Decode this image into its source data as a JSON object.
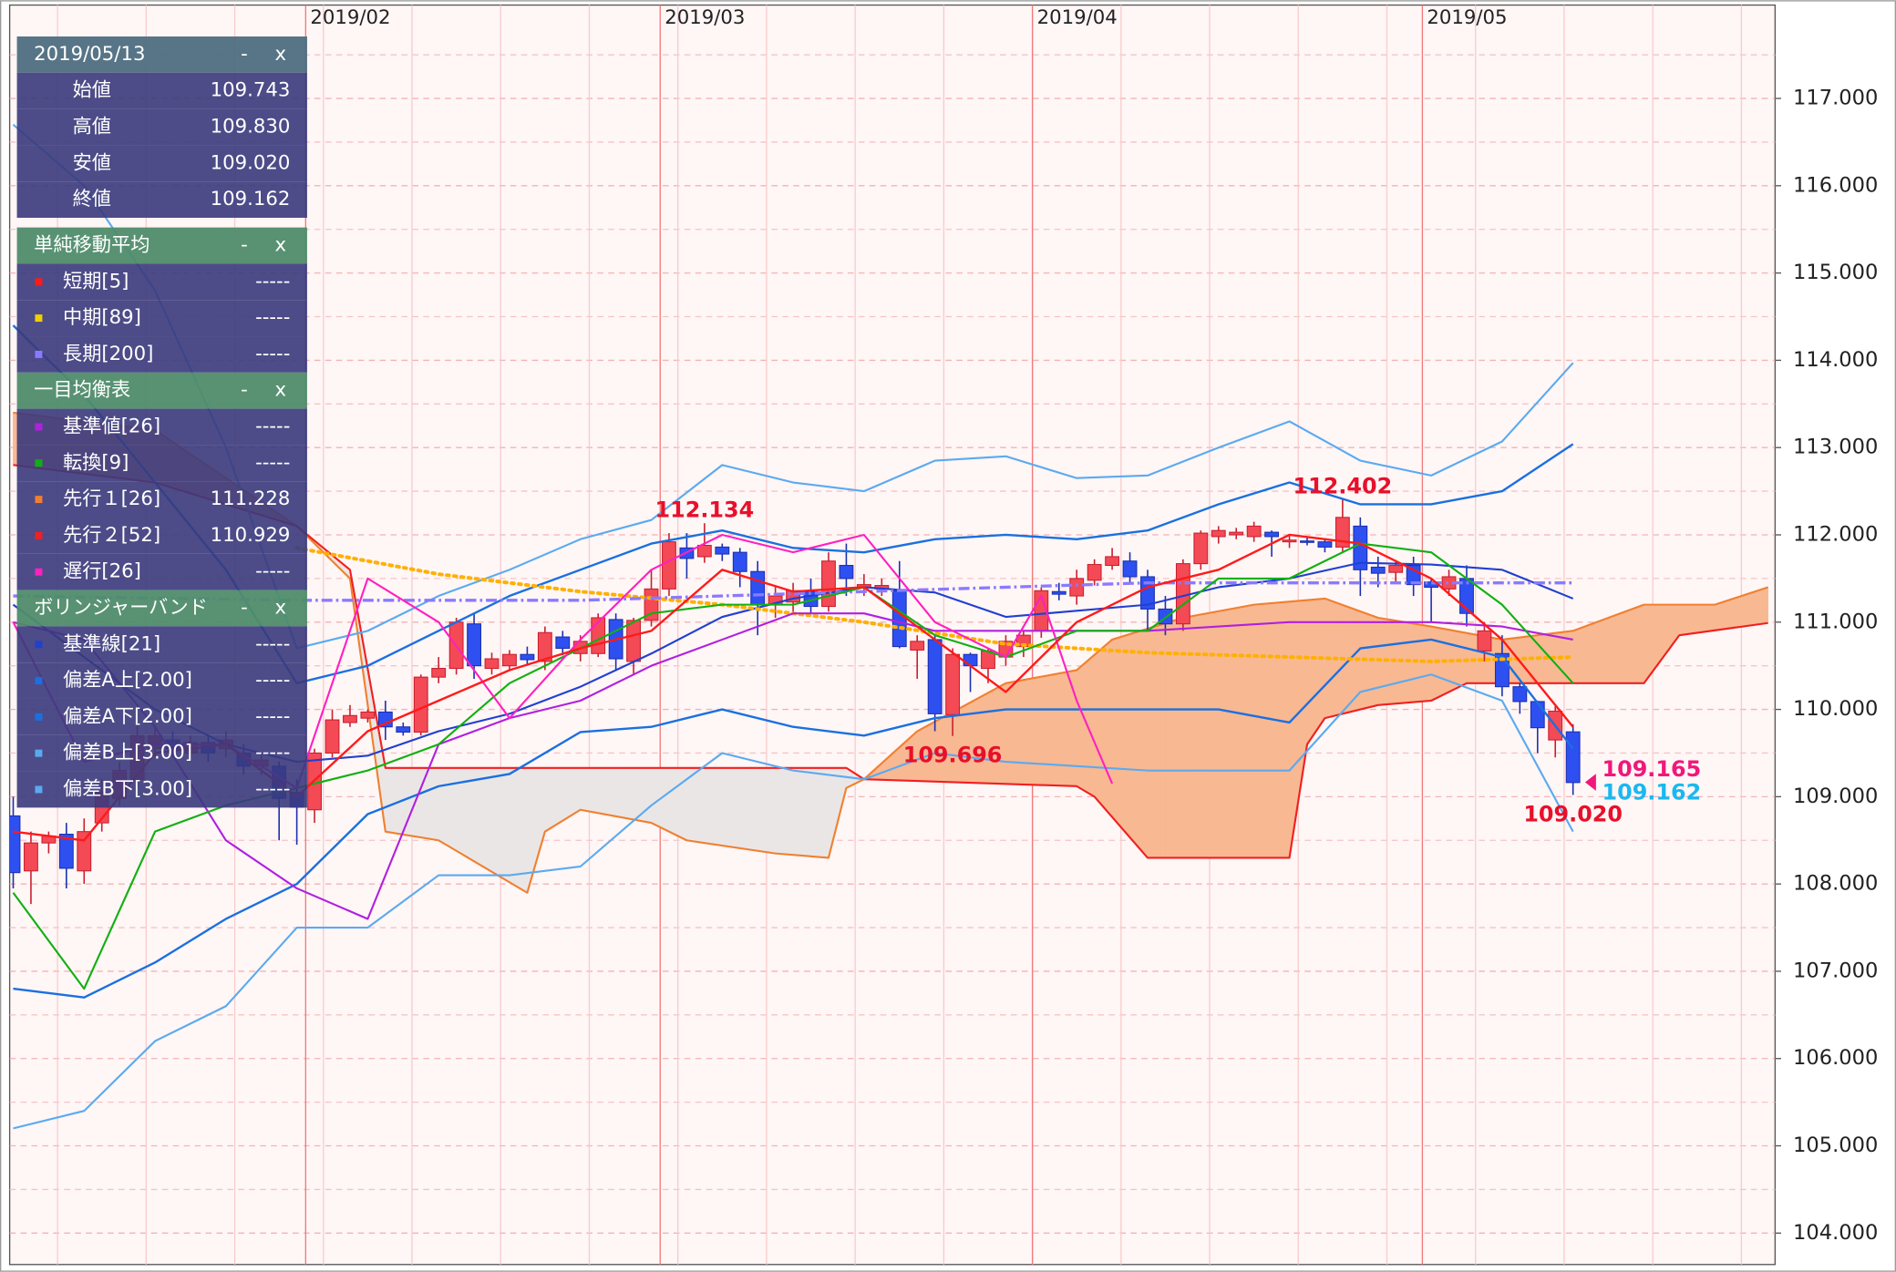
{
  "chart_data": {
    "type": "candlestick",
    "ylim": [
      103.64,
      118.07
    ],
    "yticks": [
      {
        "value": 104,
        "label": "104.000"
      },
      {
        "value": 105,
        "label": "105.000"
      },
      {
        "value": 106,
        "label": "106.000"
      },
      {
        "value": 107,
        "label": "107.000"
      },
      {
        "value": 108,
        "label": "108.000"
      },
      {
        "value": 109,
        "label": "109.000"
      },
      {
        "value": 110,
        "label": "110.000"
      },
      {
        "value": 111,
        "label": "111.000"
      },
      {
        "value": 112,
        "label": "112.000"
      },
      {
        "value": 113,
        "label": "113.000"
      },
      {
        "value": 114,
        "label": "114.000"
      },
      {
        "value": 115,
        "label": "115.000"
      },
      {
        "value": 116,
        "label": "116.000"
      },
      {
        "value": 117,
        "label": "117.000"
      }
    ],
    "minor_yticks": [
      104.5,
      105.5,
      106.5,
      107.5,
      108.5,
      109.5,
      110.5,
      111.5,
      112.5,
      113.5,
      114.5,
      115.5,
      116.5,
      117.5
    ],
    "xlim": [
      -0.2,
      99.4
    ],
    "xticks": [
      {
        "value": 17,
        "label": "2019/02"
      },
      {
        "value": 37,
        "label": "2019/03"
      },
      {
        "value": 58,
        "label": "2019/04"
      },
      {
        "value": 80,
        "label": "2019/05"
      }
    ],
    "grid": true,
    "up_color": "#f34a56",
    "down_color": "#2e50f0",
    "open": [
      108.78,
      108.15,
      108.47,
      108.57,
      108.15,
      108.7,
      108.98,
      109.2,
      109.55,
      109.65,
      109.5,
      109.62,
      109.55,
      109.5,
      109.35,
      109.35,
      109.05,
      108.85,
      109.5,
      109.85,
      109.9,
      109.97,
      109.8,
      109.74,
      110.37,
      110.47,
      110.98,
      110.47,
      110.5,
      110.63,
      110.55,
      110.83,
      110.64,
      110.64,
      111.03,
      110.55,
      111.02,
      111.38,
      111.85,
      111.75,
      111.86,
      111.8,
      111.58,
      111.2,
      111.23,
      111.35,
      111.18,
      111.65,
      111.4,
      111.38,
      111.36,
      110.68,
      110.8,
      109.94,
      110.63,
      110.47,
      110.6,
      110.72,
      110.9,
      111.35,
      111.3,
      111.48,
      111.65,
      111.7,
      111.52,
      111.15,
      110.98,
      111.67,
      111.98,
      112.0,
      111.98,
      112.03,
      111.92,
      111.93,
      111.92,
      111.86,
      112.1,
      111.63,
      111.57,
      111.65,
      111.46,
      111.38,
      111.5,
      110.67,
      110.64,
      110.26,
      110.09,
      109.65,
      109.743
    ],
    "high": [
      109.0,
      108.6,
      108.6,
      108.7,
      108.75,
      109.2,
      109.4,
      109.85,
      109.8,
      109.75,
      109.7,
      109.7,
      109.75,
      109.6,
      109.5,
      109.4,
      109.2,
      109.55,
      110.0,
      110.05,
      110.0,
      110.1,
      109.85,
      110.4,
      110.6,
      111.05,
      111.1,
      110.65,
      110.68,
      110.72,
      110.95,
      110.9,
      110.85,
      111.1,
      111.1,
      111.05,
      111.6,
      112.02,
      112.02,
      112.134,
      111.9,
      111.85,
      111.7,
      111.4,
      111.45,
      111.5,
      111.8,
      111.9,
      111.55,
      111.5,
      111.7,
      110.85,
      110.85,
      110.7,
      110.65,
      110.7,
      110.85,
      110.9,
      111.4,
      111.45,
      111.6,
      111.72,
      111.85,
      111.8,
      111.6,
      111.3,
      111.72,
      112.05,
      112.1,
      112.08,
      112.15,
      112.05,
      112.0,
      111.98,
      111.95,
      112.402,
      112.2,
      111.75,
      111.7,
      111.75,
      111.5,
      111.6,
      111.65,
      111.0,
      110.85,
      110.3,
      110.1,
      110.05,
      109.83
    ],
    "low": [
      107.95,
      107.77,
      108.35,
      107.95,
      108.0,
      108.6,
      108.9,
      109.1,
      109.45,
      109.45,
      109.4,
      109.4,
      109.45,
      109.25,
      109.25,
      108.5,
      108.45,
      108.7,
      109.45,
      109.8,
      109.85,
      109.65,
      109.7,
      109.7,
      110.3,
      110.4,
      110.35,
      110.4,
      110.45,
      110.5,
      110.45,
      110.62,
      110.55,
      110.6,
      110.45,
      110.4,
      110.95,
      111.3,
      111.5,
      111.68,
      111.7,
      111.4,
      110.85,
      111.05,
      111.1,
      111.1,
      111.12,
      111.3,
      111.3,
      111.3,
      110.7,
      110.35,
      109.75,
      109.696,
      110.2,
      110.3,
      110.5,
      110.6,
      110.82,
      111.25,
      111.2,
      111.42,
      111.6,
      111.45,
      110.9,
      110.85,
      110.9,
      111.6,
      111.9,
      111.95,
      111.92,
      111.75,
      111.85,
      111.88,
      111.8,
      111.8,
      111.3,
      111.4,
      111.45,
      111.3,
      111.0,
      111.3,
      110.95,
      110.55,
      110.15,
      109.95,
      109.5,
      109.45,
      109.02
    ],
    "close": [
      108.13,
      108.47,
      108.55,
      108.18,
      108.6,
      109.05,
      109.3,
      109.7,
      109.7,
      109.55,
      109.62,
      109.5,
      109.65,
      109.35,
      109.42,
      108.98,
      108.88,
      109.5,
      109.88,
      109.93,
      109.97,
      109.8,
      109.74,
      110.37,
      110.47,
      111.0,
      110.5,
      110.58,
      110.63,
      110.57,
      110.88,
      110.7,
      110.78,
      111.05,
      110.58,
      111.02,
      111.38,
      111.92,
      111.73,
      111.88,
      111.78,
      111.58,
      111.2,
      111.3,
      111.36,
      111.18,
      111.7,
      111.5,
      111.43,
      111.42,
      110.72,
      110.78,
      109.95,
      110.63,
      110.5,
      110.67,
      110.78,
      110.85,
      111.36,
      111.32,
      111.5,
      111.66,
      111.75,
      111.52,
      111.15,
      110.98,
      111.67,
      112.02,
      112.05,
      112.03,
      112.1,
      111.98,
      111.94,
      111.92,
      111.86,
      112.2,
      111.6,
      111.56,
      111.65,
      111.43,
      111.4,
      111.52,
      111.1,
      110.9,
      110.26,
      110.09,
      109.79,
      109.98,
      109.162
    ],
    "series": [
      {
        "color": "#5aaaf0",
        "width": 1.6,
        "x": [
          0,
          4,
          8,
          12,
          16,
          20,
          24,
          28,
          32,
          36,
          40,
          44,
          48,
          52,
          56,
          60,
          64,
          68,
          72,
          76,
          80,
          84,
          88
        ],
        "values": [
          116.7,
          116.0,
          114.8,
          113.0,
          110.7,
          110.9,
          111.3,
          111.6,
          111.95,
          112.17,
          112.8,
          112.6,
          112.5,
          112.85,
          112.9,
          112.65,
          112.68,
          113.0,
          113.3,
          112.85,
          112.68,
          113.07,
          113.97
        ]
      },
      {
        "color": "#1a70e0",
        "width": 1.8,
        "x": [
          0,
          4,
          8,
          12,
          16,
          20,
          24,
          28,
          32,
          36,
          40,
          44,
          48,
          52,
          56,
          60,
          64,
          68,
          72,
          76,
          80,
          84,
          88
        ],
        "values": [
          114.4,
          113.6,
          112.6,
          111.6,
          110.3,
          110.5,
          110.9,
          111.3,
          111.6,
          111.9,
          112.05,
          111.85,
          111.8,
          111.95,
          112.0,
          111.95,
          112.05,
          112.35,
          112.6,
          112.35,
          112.35,
          112.5,
          113.04
        ]
      },
      {
        "color": "#2040d0",
        "width": 1.6,
        "x": [
          0,
          4,
          8,
          12,
          16,
          20,
          24,
          28,
          32,
          36,
          40,
          44,
          48,
          52,
          56,
          60,
          64,
          68,
          72,
          76,
          80,
          84,
          88
        ],
        "values": [
          111.2,
          110.6,
          110.0,
          109.6,
          109.4,
          109.47,
          109.75,
          109.95,
          110.26,
          110.64,
          111.06,
          111.27,
          111.4,
          111.34,
          111.06,
          111.13,
          111.2,
          111.4,
          111.5,
          111.68,
          111.66,
          111.6,
          111.27
        ]
      },
      {
        "color": "#1a70e0",
        "width": 1.8,
        "x": [
          0,
          4,
          8,
          12,
          16,
          20,
          24,
          28,
          32,
          36,
          40,
          44,
          48,
          52,
          56,
          60,
          64,
          68,
          72,
          76,
          80,
          84,
          88
        ],
        "values": [
          106.8,
          106.7,
          107.1,
          107.6,
          108.0,
          108.8,
          109.12,
          109.26,
          109.74,
          109.8,
          110.0,
          109.8,
          109.7,
          109.9,
          110.0,
          110.0,
          110.0,
          110.0,
          109.85,
          110.7,
          110.8,
          110.6,
          109.55
        ]
      },
      {
        "color": "#5aaaf0",
        "width": 1.6,
        "x": [
          0,
          4,
          8,
          12,
          16,
          20,
          24,
          28,
          32,
          36,
          40,
          44,
          48,
          52,
          56,
          60,
          64,
          68,
          72,
          76,
          80,
          84,
          88
        ],
        "values": [
          105.2,
          105.4,
          106.2,
          106.6,
          107.5,
          107.5,
          108.1,
          108.1,
          108.2,
          108.9,
          109.5,
          109.3,
          109.2,
          109.5,
          109.4,
          109.35,
          109.3,
          109.3,
          109.3,
          110.2,
          110.4,
          110.1,
          108.6
        ]
      },
      {
        "color": "#ffb000",
        "width": 3,
        "dash": "dotted",
        "x": [
          16,
          24,
          32,
          40,
          48,
          56,
          64,
          72,
          80,
          88
        ],
        "values": [
          111.85,
          111.55,
          111.35,
          111.2,
          111.0,
          110.75,
          110.65,
          110.6,
          110.55,
          110.6
        ]
      },
      {
        "color": "#8a7aff",
        "width": 2.5,
        "dash": "dashdot",
        "x": [
          0,
          16,
          32,
          48,
          64,
          80,
          88
        ],
        "values": [
          111.3,
          111.25,
          111.25,
          111.35,
          111.45,
          111.45,
          111.45
        ]
      },
      {
        "color": "#b020e0",
        "width": 1.6,
        "x": [
          0,
          4,
          8,
          12,
          16,
          20,
          24,
          28,
          32,
          36,
          40,
          44,
          48,
          52,
          56,
          60,
          64,
          68,
          72,
          76,
          80,
          84,
          88
        ],
        "values": [
          111.0,
          110.8,
          109.8,
          108.5,
          107.95,
          107.6,
          109.6,
          109.9,
          110.1,
          110.5,
          110.8,
          111.1,
          111.1,
          110.9,
          110.9,
          110.9,
          110.9,
          110.95,
          111.0,
          111.0,
          111.0,
          110.95,
          110.8
        ]
      },
      {
        "color": "#10b010",
        "width": 1.6,
        "x": [
          0,
          4,
          8,
          12,
          16,
          20,
          24,
          28,
          32,
          36,
          40,
          44,
          48,
          52,
          56,
          60,
          64,
          68,
          72,
          76,
          80,
          84,
          88
        ],
        "values": [
          107.9,
          106.8,
          108.6,
          108.9,
          109.1,
          109.3,
          109.6,
          110.3,
          110.7,
          111.1,
          111.2,
          111.2,
          111.4,
          110.85,
          110.6,
          110.9,
          110.9,
          111.5,
          111.5,
          111.9,
          111.8,
          111.2,
          110.3
        ]
      },
      {
        "color": "#ff20c0",
        "width": 1.6,
        "x": [
          0,
          4,
          8,
          12,
          16,
          20,
          24,
          28,
          32,
          36,
          40,
          44,
          48,
          52,
          56,
          58,
          60,
          62
        ],
        "values": [
          111.0,
          109.4,
          109.6,
          109.6,
          109.1,
          111.5,
          111.0,
          109.9,
          110.8,
          111.6,
          112.0,
          111.8,
          112.0,
          111.0,
          110.6,
          111.3,
          110.1,
          109.15
        ]
      },
      {
        "color": "#ff1a1a",
        "width": 1.8,
        "x": [
          0,
          4,
          8,
          12,
          16,
          20,
          24,
          28,
          32,
          36,
          40,
          44,
          48,
          52,
          56,
          60,
          64,
          68,
          72,
          76,
          80,
          84,
          88
        ],
        "values": [
          108.6,
          108.5,
          109.5,
          109.6,
          109.0,
          109.75,
          110.1,
          110.45,
          110.7,
          110.9,
          111.6,
          111.35,
          111.4,
          110.8,
          110.2,
          111.0,
          111.4,
          111.6,
          112.0,
          111.9,
          111.5,
          110.8,
          109.8
        ]
      }
    ],
    "cloud": {
      "up_color": "#f8b892",
      "down_color": "#ebe6e6",
      "span1": {
        "color": "#f08030",
        "x": [
          0,
          8,
          16,
          19,
          21,
          24,
          29,
          30,
          32,
          36,
          38,
          43,
          46,
          47,
          48,
          51,
          56,
          60,
          62,
          66,
          70,
          74,
          77,
          80,
          84,
          88,
          92,
          96,
          99
        ],
        "values": [
          113.4,
          113.2,
          112.1,
          111.5,
          108.6,
          108.5,
          107.9,
          108.6,
          108.85,
          108.7,
          108.5,
          108.35,
          108.3,
          109.1,
          109.2,
          109.75,
          110.3,
          110.45,
          110.8,
          111.05,
          111.2,
          111.27,
          111.05,
          110.95,
          110.8,
          110.9,
          111.2,
          111.2,
          111.4
        ]
      },
      "span2": {
        "color": "#f02020",
        "x": [
          0,
          8,
          16,
          19,
          21,
          47,
          48,
          60,
          61,
          64,
          72,
          73,
          74,
          77,
          80,
          82,
          84,
          88,
          92,
          94,
          99
        ],
        "values": [
          112.8,
          112.6,
          112.1,
          111.6,
          109.33,
          109.33,
          109.2,
          109.12,
          109.0,
          108.3,
          108.3,
          109.6,
          109.9,
          110.05,
          110.1,
          110.3,
          110.3,
          110.3,
          110.3,
          110.85,
          110.99
        ]
      }
    },
    "annotations": [
      {
        "label": "112.134",
        "x": 39,
        "value": 112.134,
        "color": "#e8102a",
        "position": "above"
      },
      {
        "label": "112.402",
        "x": 75,
        "value": 112.402,
        "color": "#e8102a",
        "position": "above"
      },
      {
        "label": "109.696",
        "x": 53,
        "value": 109.696,
        "color": "#e8102a",
        "position": "below"
      },
      {
        "label": "109.020",
        "x": 88,
        "value": 109.02,
        "color": "#e8102a",
        "position": "below"
      },
      {
        "label": "109.165",
        "x": 88,
        "value": 109.165,
        "color": "#f0187a",
        "position": "right"
      },
      {
        "label": "109.162",
        "x": 88,
        "value": 109.162,
        "color": "#1ab8f0",
        "position": "right"
      }
    ]
  },
  "panel": {
    "buttons": [
      "-",
      "x"
    ],
    "sections": [
      {
        "title": "2019/05/13",
        "rows": [
          {
            "label": "始値",
            "value": "109.743"
          },
          {
            "label": "高値",
            "value": "109.830"
          },
          {
            "label": "安値",
            "value": "109.020"
          },
          {
            "label": "終値",
            "value": "109.162"
          }
        ]
      },
      {
        "title": "単純移動平均",
        "rows": [
          {
            "label": "短期[5]",
            "value": "-----",
            "color": "#ff1a1a"
          },
          {
            "label": "中期[89]",
            "value": "-----",
            "color": "#f0d000"
          },
          {
            "label": "長期[200]",
            "value": "-----",
            "color": "#8a7aff"
          }
        ]
      },
      {
        "title": "一目均衡表",
        "rows": [
          {
            "label": "基準値[26]",
            "value": "-----",
            "color": "#b020e0"
          },
          {
            "label": "転換[9]",
            "value": "-----",
            "color": "#10b010"
          },
          {
            "label": "先行１[26]",
            "value": "111.228",
            "color": "#f08030"
          },
          {
            "label": "先行２[52]",
            "value": "110.929",
            "color": "#f02020"
          },
          {
            "label": "遅行[26]",
            "value": "-----",
            "color": "#ff20c0"
          }
        ]
      },
      {
        "title": "ボリンジャーバンド",
        "rows": [
          {
            "label": "基準線[21]",
            "value": "-----",
            "color": "#2040d0"
          },
          {
            "label": "偏差A上[2.00]",
            "value": "-----",
            "color": "#1a70e0"
          },
          {
            "label": "偏差A下[2.00]",
            "value": "-----",
            "color": "#1a70e0"
          },
          {
            "label": "偏差B上[3.00]",
            "value": "-----",
            "color": "#5aaaf0"
          },
          {
            "label": "偏差B下[3.00]",
            "value": "-----",
            "color": "#5aaaf0"
          }
        ]
      }
    ]
  }
}
